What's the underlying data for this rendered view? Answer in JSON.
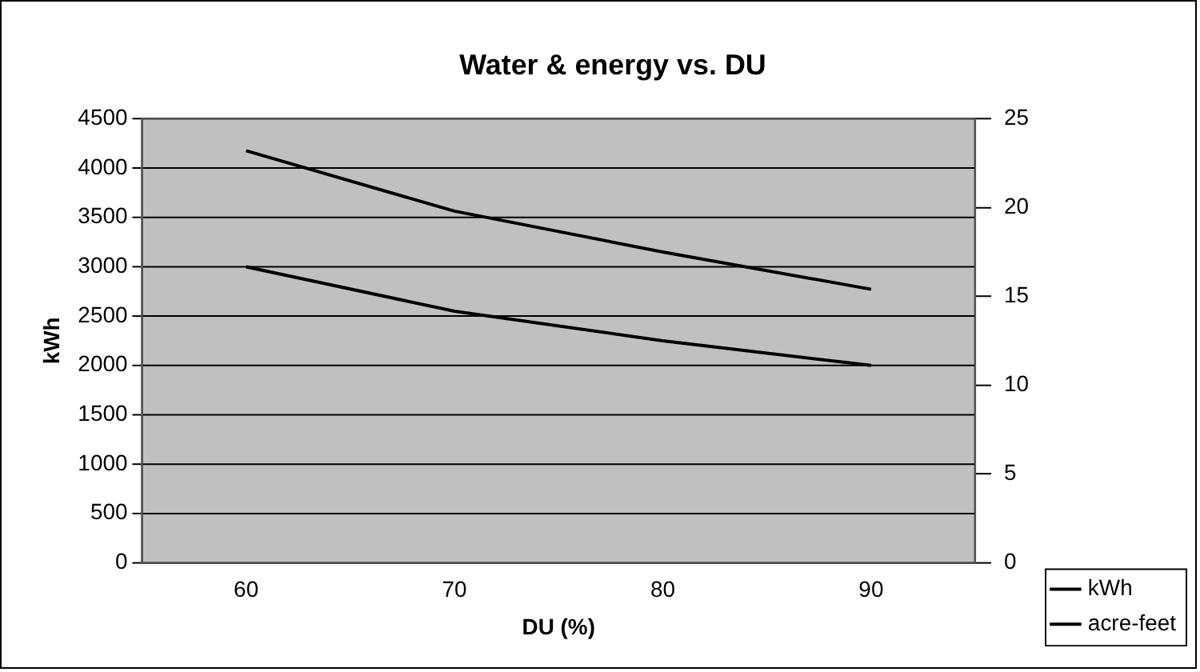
{
  "chart_data": {
    "type": "line",
    "title": "Water & energy vs. DU",
    "xlabel": "DU (%)",
    "ylabel": "kWh",
    "categories": [
      "60",
      "70",
      "80",
      "90"
    ],
    "series": [
      {
        "name": "kWh",
        "color": "#000000",
        "values": [
          3000,
          2550,
          2250,
          2000
        ]
      },
      {
        "name": "acre-feet",
        "color": "#000000",
        "axis": "y2",
        "values": [
          23.2,
          19.8,
          17.5,
          15.4
        ]
      }
    ],
    "ylim": [
      0,
      4500
    ],
    "yticks": [
      0,
      500,
      1000,
      1500,
      2000,
      2500,
      3000,
      3500,
      4000,
      4500
    ],
    "y2lim": [
      0,
      25
    ],
    "y2ticks": [
      0,
      5,
      10,
      15,
      20,
      25
    ],
    "grid": "y",
    "legend": "bottom right",
    "marker": "none",
    "line_style": "solid"
  }
}
